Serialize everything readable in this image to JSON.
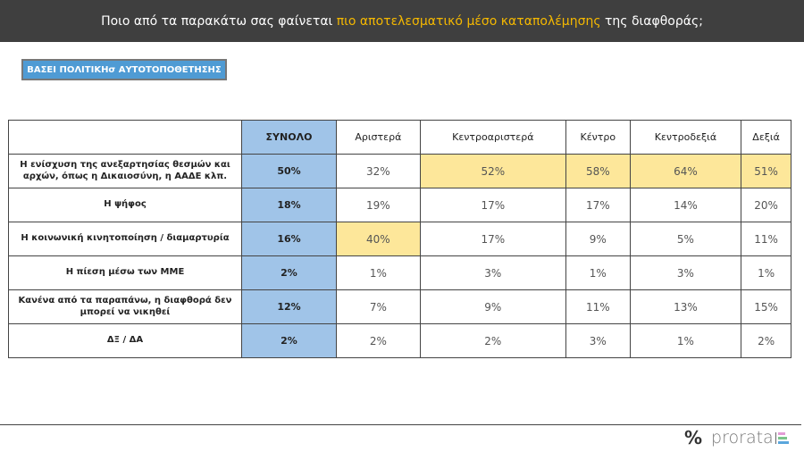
{
  "header": {
    "title_pre": "Ποιο από τα παρακάτω σας φαίνεται ",
    "title_highlight": "πιο αποτελεσματικό μέσο καταπολέμησης",
    "title_post": " της διαφθοράς;"
  },
  "badge": "ΒΑΣΕΙ ΠΟΛΙΤΙΚΗσ ΑΥΤΟΤΟΠΟΘΕΤΗΣΗΣ",
  "table": {
    "columns": [
      "ΣΥΝΟΛΟ",
      "Αριστερά",
      "Κεντροαριστερά",
      "Κέντρο",
      "Κεντροδεξιά",
      "Δεξιά"
    ],
    "rows": [
      {
        "label": "Η ενίσχυση της ανεξαρτησίας θεσμών και αρχών, όπως η Δικαιοσύνη, η ΑΑΔΕ κλπ.",
        "values": [
          "50%",
          "32%",
          "52%",
          "58%",
          "64%",
          "51%"
        ]
      },
      {
        "label": "Η ψήφος",
        "values": [
          "18%",
          "19%",
          "17%",
          "17%",
          "14%",
          "20%"
        ]
      },
      {
        "label": "Η κοινωνική κινητοποίηση / διαμαρτυρία",
        "values": [
          "16%",
          "40%",
          "17%",
          "9%",
          "5%",
          "11%"
        ]
      },
      {
        "label": "Η πίεση μέσω των ΜΜΕ",
        "values": [
          "2%",
          "1%",
          "3%",
          "1%",
          "3%",
          "1%"
        ]
      },
      {
        "label": "Κανένα από τα παραπάνω, η διαφθορά δεν μπορεί να νικηθεί",
        "values": [
          "12%",
          "7%",
          "9%",
          "11%",
          "13%",
          "15%"
        ]
      },
      {
        "label": "ΔΞ / ΔΑ",
        "values": [
          "2%",
          "2%",
          "2%",
          "3%",
          "1%",
          "2%"
        ]
      }
    ]
  },
  "logo": {
    "symbol": "%",
    "name": "prorata"
  }
}
